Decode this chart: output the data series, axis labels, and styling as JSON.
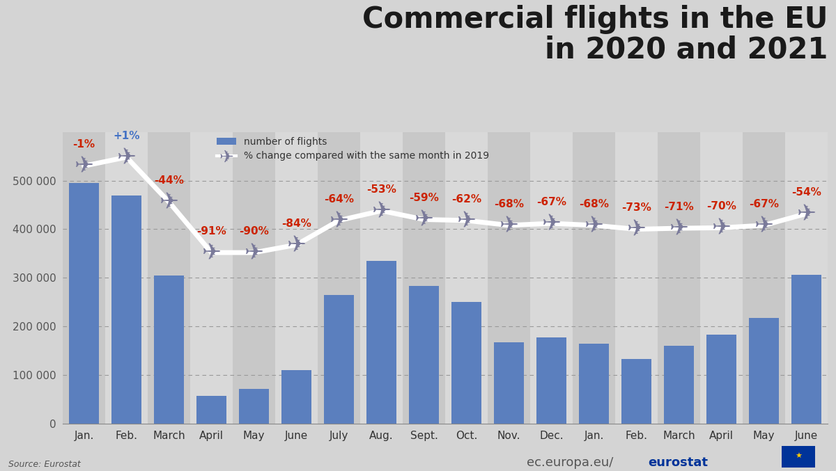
{
  "categories": [
    "Jan.",
    "Feb.",
    "March",
    "April",
    "May",
    "June",
    "July",
    "Aug.",
    "Sept.",
    "Oct.",
    "Nov.",
    "Dec.",
    "Jan.",
    "Feb.",
    "March",
    "April",
    "May",
    "June"
  ],
  "values": [
    495000,
    470000,
    305000,
    58000,
    72000,
    110000,
    265000,
    335000,
    283000,
    250000,
    168000,
    178000,
    165000,
    133000,
    160000,
    183000,
    218000,
    307000
  ],
  "pct_labels": [
    "-1%",
    "+1%",
    "-44%",
    "-91%",
    "-90%",
    "-84%",
    "-64%",
    "-53%",
    "-59%",
    "-62%",
    "-68%",
    "-67%",
    "-68%",
    "-73%",
    "-71%",
    "-70%",
    "-67%",
    "-54%"
  ],
  "pct_label_colors": [
    "#cc2200",
    "#4472c4",
    "#cc2200",
    "#cc2200",
    "#cc2200",
    "#cc2200",
    "#cc2200",
    "#cc2200",
    "#cc2200",
    "#cc2200",
    "#cc2200",
    "#cc2200",
    "#cc2200",
    "#cc2200",
    "#cc2200",
    "#cc2200",
    "#cc2200",
    "#cc2200"
  ],
  "plane_y": [
    530000,
    548000,
    456000,
    352000,
    352000,
    368000,
    418000,
    438000,
    420000,
    418000,
    408000,
    412000,
    408000,
    400000,
    402000,
    403000,
    408000,
    432000
  ],
  "bar_color": "#5b7fbe",
  "background_color": "#d4d4d4",
  "band_colors_even": "#c8c8c8",
  "band_colors_odd": "#d9d9d9",
  "ylim": [
    0,
    600000
  ],
  "yticks": [
    0,
    100000,
    200000,
    300000,
    400000,
    500000
  ],
  "ytick_labels": [
    "0",
    "100 000",
    "200 000",
    "300 000",
    "400 000",
    "500 000"
  ],
  "title_line1": "Commercial flights in the EU",
  "title_line2": "in 2020 and 2021",
  "title_fontsize": 30,
  "legend_bar_label": "number of flights",
  "legend_line_label": "% change compared with the same month in 2019",
  "source_text": "Source: Eurostat",
  "watermark_plain": "ec.europa.eu/",
  "watermark_bold": "eurostat",
  "plane_fontsize": 24,
  "pct_fontsize": 11,
  "tick_fontsize": 11
}
